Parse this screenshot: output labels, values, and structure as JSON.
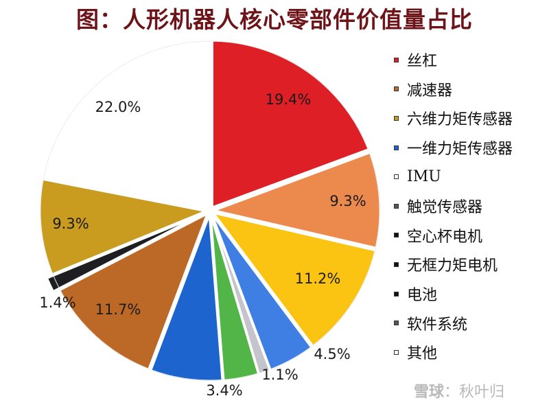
{
  "chart_data": {
    "type": "pie",
    "title": "图：人形机器人核心零部件价值量占比",
    "categories": [
      "丝杠",
      "六维力矩传感器",
      "一维力矩传感器",
      "IMU",
      "触觉传感器",
      "空心杯电机",
      "无框力矩电机",
      "电池",
      "软件系统",
      "其他",
      "减速器"
    ],
    "slices": [
      {
        "label": "丝杠",
        "value": 19.4,
        "display": "19.4%",
        "color": "#df1f26"
      },
      {
        "label": "减速器",
        "value": 9.3,
        "display": "9.3%",
        "color": "#ec8a4e"
      },
      {
        "label": "六维力矩传感器",
        "value": 11.2,
        "display": "11.2%",
        "color": "#fbc412"
      },
      {
        "label": "一维力矩传感器",
        "value": 4.5,
        "display": "4.5%",
        "color": "#3f7fe4"
      },
      {
        "label": "IMU",
        "value": 1.1,
        "display": "1.1%",
        "color": "#c4c4cc"
      },
      {
        "label": "触觉传感器",
        "value": 3.4,
        "display": "3.4%",
        "color": "#52b548"
      },
      {
        "label": "空心杯电机",
        "value": 7.0,
        "display": "",
        "color": "#1d64cf"
      },
      {
        "label": "无框力矩电机",
        "value": 11.7,
        "display": "11.7%",
        "color": "#bc6927"
      },
      {
        "label": "电池",
        "value": 1.4,
        "display": "1.4%",
        "color": "#1e1e22"
      },
      {
        "label": "软件系统",
        "value": 9.3,
        "display": "9.3%",
        "color": "#c99b1f"
      },
      {
        "label": "其他",
        "value": 22.0,
        "display": "22.0%",
        "color": "#ffffff"
      }
    ],
    "legend_position": "right"
  },
  "legend": [
    {
      "label": "丝杠",
      "color": "#df1f26"
    },
    {
      "label": "减速器",
      "color": "#bc6927"
    },
    {
      "label": "六维力矩传感器",
      "color": "#c99b1f"
    },
    {
      "label": "一维力矩传感器",
      "color": "#1d64cf"
    },
    {
      "label": "IMU",
      "color": "#ffffff"
    },
    {
      "label": "触觉传感器",
      "color": "#555555"
    },
    {
      "label": "空心杯电机",
      "color": "#111111"
    },
    {
      "label": "无框力矩电机",
      "color": "#111111"
    },
    {
      "label": "电池",
      "color": "#111111"
    },
    {
      "label": "软件系统",
      "color": "#555555"
    },
    {
      "label": "其他",
      "color": "#ffffff"
    }
  ],
  "watermark": {
    "logo": "雪球",
    "text": "：秋叶归"
  }
}
